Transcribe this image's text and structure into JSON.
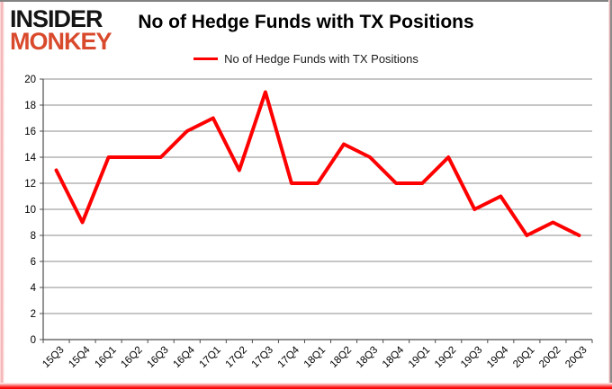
{
  "logo": {
    "line1": "INSIDER",
    "line2": "MONKEY"
  },
  "header": {
    "title": "No of Hedge Funds with TX Positions"
  },
  "legend": {
    "label": "No of Hedge Funds with TX Positions"
  },
  "colors": {
    "series_line": "#ff0000",
    "gridline": "#8e8e8e",
    "axis": "#4d4d4d",
    "tick_label": "#000000",
    "logo_black": "#151515",
    "logo_red": "#d94a2d",
    "frame_gray": "#828282"
  },
  "chart_data": {
    "type": "line",
    "title": "No of Hedge Funds with TX Positions",
    "categories": [
      "15Q3",
      "15Q4",
      "16Q1",
      "16Q2",
      "16Q3",
      "16Q4",
      "17Q1",
      "17Q2",
      "17Q3",
      "17Q4",
      "18Q1",
      "18Q2",
      "18Q3",
      "18Q4",
      "19Q1",
      "19Q2",
      "19Q3",
      "19Q4",
      "20Q1",
      "20Q2",
      "20Q3"
    ],
    "series": [
      {
        "name": "No of Hedge Funds with TX Positions",
        "values": [
          13,
          9,
          14,
          14,
          14,
          16,
          17,
          13,
          19,
          12,
          12,
          15,
          14,
          12,
          12,
          14,
          10,
          11,
          8,
          9,
          8
        ]
      }
    ],
    "xlabel": "",
    "ylabel": "",
    "ylim": [
      0,
      20
    ],
    "ytick_step": 2,
    "grid": true,
    "legend_position": "top-center"
  }
}
